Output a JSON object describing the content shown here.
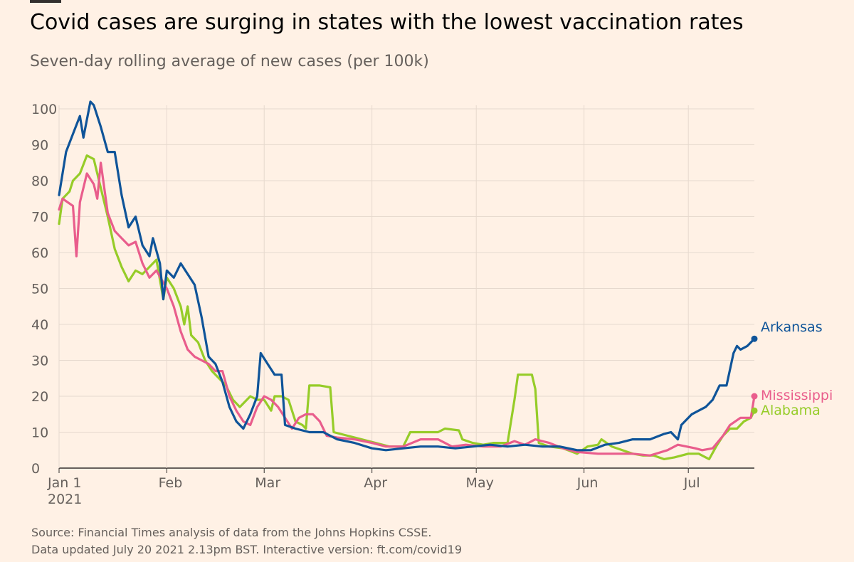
{
  "title": "Covid cases are surging in states with the lowest vaccination rates",
  "subtitle": "Seven-day rolling average of new cases (per 100k)",
  "footnotes": [
    "Source: Financial Times analysis of data from the Johns Hopkins CSSE.",
    "Data updated July 20 2021 2.13pm BST. Interactive version: ft.com/covid19"
  ],
  "chart_data": {
    "type": "line",
    "title": "Covid cases are surging in states with the lowest vaccination rates",
    "subtitle": "Seven-day rolling average of new cases (per 100k)",
    "x_unit": "date (2021)",
    "x_range": [
      "2021-01-01",
      "2021-07-20"
    ],
    "ylim": [
      0,
      100
    ],
    "yticks": [
      0,
      10,
      20,
      30,
      40,
      50,
      60,
      70,
      80,
      90,
      100
    ],
    "xticks": [
      {
        "date": "2021-01-01",
        "label": "Jan 1",
        "sublabel": "2021"
      },
      {
        "date": "2021-02-01",
        "label": "Feb"
      },
      {
        "date": "2021-03-01",
        "label": "Mar"
      },
      {
        "date": "2021-04-01",
        "label": "Apr"
      },
      {
        "date": "2021-05-01",
        "label": "May"
      },
      {
        "date": "2021-06-01",
        "label": "Jun"
      },
      {
        "date": "2021-07-01",
        "label": "Jul"
      }
    ],
    "grid": "vertical",
    "legend": "inline labels at line ends",
    "series": [
      {
        "name": "Arkansas",
        "color": "#0f5499",
        "points": [
          [
            "2021-01-01",
            76
          ],
          [
            "2021-01-03",
            88
          ],
          [
            "2021-01-05",
            93
          ],
          [
            "2021-01-07",
            98
          ],
          [
            "2021-01-08",
            92
          ],
          [
            "2021-01-10",
            102
          ],
          [
            "2021-01-11",
            101
          ],
          [
            "2021-01-13",
            95
          ],
          [
            "2021-01-15",
            88
          ],
          [
            "2021-01-17",
            88
          ],
          [
            "2021-01-19",
            76
          ],
          [
            "2021-01-21",
            67
          ],
          [
            "2021-01-23",
            70
          ],
          [
            "2021-01-25",
            62
          ],
          [
            "2021-01-27",
            59
          ],
          [
            "2021-01-28",
            64
          ],
          [
            "2021-01-30",
            57
          ],
          [
            "2021-01-31",
            47
          ],
          [
            "2021-02-01",
            55
          ],
          [
            "2021-02-03",
            53
          ],
          [
            "2021-02-05",
            57
          ],
          [
            "2021-02-07",
            54
          ],
          [
            "2021-02-09",
            51
          ],
          [
            "2021-02-11",
            42
          ],
          [
            "2021-02-13",
            31
          ],
          [
            "2021-02-15",
            29
          ],
          [
            "2021-02-17",
            24
          ],
          [
            "2021-02-19",
            17
          ],
          [
            "2021-02-21",
            13
          ],
          [
            "2021-02-23",
            11
          ],
          [
            "2021-02-25",
            15
          ],
          [
            "2021-02-27",
            20
          ],
          [
            "2021-02-28",
            32
          ],
          [
            "2021-03-02",
            29
          ],
          [
            "2021-03-04",
            26
          ],
          [
            "2021-03-06",
            26
          ],
          [
            "2021-03-07",
            12
          ],
          [
            "2021-03-10",
            11
          ],
          [
            "2021-03-14",
            10
          ],
          [
            "2021-03-18",
            10
          ],
          [
            "2021-03-22",
            8
          ],
          [
            "2021-03-27",
            7
          ],
          [
            "2021-04-01",
            5.5
          ],
          [
            "2021-04-05",
            5
          ],
          [
            "2021-04-10",
            5.5
          ],
          [
            "2021-04-15",
            6
          ],
          [
            "2021-04-20",
            6
          ],
          [
            "2021-04-25",
            5.5
          ],
          [
            "2021-04-30",
            6
          ],
          [
            "2021-05-05",
            6.5
          ],
          [
            "2021-05-10",
            6
          ],
          [
            "2021-05-15",
            6.5
          ],
          [
            "2021-05-20",
            6
          ],
          [
            "2021-05-25",
            6
          ],
          [
            "2021-05-30",
            5
          ],
          [
            "2021-06-03",
            5
          ],
          [
            "2021-06-07",
            6.5
          ],
          [
            "2021-06-11",
            7
          ],
          [
            "2021-06-15",
            8
          ],
          [
            "2021-06-20",
            8
          ],
          [
            "2021-06-24",
            9.5
          ],
          [
            "2021-06-26",
            10
          ],
          [
            "2021-06-28",
            8
          ],
          [
            "2021-06-29",
            12
          ],
          [
            "2021-07-02",
            15
          ],
          [
            "2021-07-04",
            16
          ],
          [
            "2021-07-06",
            17
          ],
          [
            "2021-07-08",
            19
          ],
          [
            "2021-07-10",
            23
          ],
          [
            "2021-07-12",
            23
          ],
          [
            "2021-07-14",
            32
          ],
          [
            "2021-07-15",
            34
          ],
          [
            "2021-07-16",
            33
          ],
          [
            "2021-07-18",
            34
          ],
          [
            "2021-07-20",
            36
          ]
        ]
      },
      {
        "name": "Mississippi",
        "color": "#e95d8c",
        "points": [
          [
            "2021-01-01",
            72
          ],
          [
            "2021-01-02",
            75
          ],
          [
            "2021-01-05",
            73
          ],
          [
            "2021-01-06",
            59
          ],
          [
            "2021-01-07",
            74
          ],
          [
            "2021-01-09",
            82
          ],
          [
            "2021-01-11",
            79
          ],
          [
            "2021-01-12",
            75
          ],
          [
            "2021-01-13",
            85
          ],
          [
            "2021-01-15",
            71
          ],
          [
            "2021-01-17",
            66
          ],
          [
            "2021-01-19",
            64
          ],
          [
            "2021-01-21",
            62
          ],
          [
            "2021-01-23",
            63
          ],
          [
            "2021-01-25",
            57
          ],
          [
            "2021-01-27",
            53
          ],
          [
            "2021-01-29",
            55
          ],
          [
            "2021-02-01",
            50
          ],
          [
            "2021-02-03",
            45
          ],
          [
            "2021-02-05",
            38
          ],
          [
            "2021-02-07",
            33
          ],
          [
            "2021-02-09",
            31
          ],
          [
            "2021-02-11",
            30
          ],
          [
            "2021-02-13",
            29
          ],
          [
            "2021-02-15",
            27
          ],
          [
            "2021-02-17",
            27
          ],
          [
            "2021-02-19",
            20
          ],
          [
            "2021-02-21",
            16
          ],
          [
            "2021-02-23",
            13
          ],
          [
            "2021-02-25",
            12
          ],
          [
            "2021-02-27",
            17
          ],
          [
            "2021-03-01",
            20
          ],
          [
            "2021-03-03",
            19
          ],
          [
            "2021-03-05",
            17
          ],
          [
            "2021-03-07",
            14
          ],
          [
            "2021-03-09",
            11
          ],
          [
            "2021-03-11",
            14
          ],
          [
            "2021-03-13",
            15
          ],
          [
            "2021-03-15",
            15
          ],
          [
            "2021-03-17",
            13
          ],
          [
            "2021-03-19",
            9
          ],
          [
            "2021-03-22",
            8.5
          ],
          [
            "2021-03-27",
            8
          ],
          [
            "2021-04-01",
            7
          ],
          [
            "2021-04-05",
            6
          ],
          [
            "2021-04-10",
            6
          ],
          [
            "2021-04-15",
            8
          ],
          [
            "2021-04-20",
            8
          ],
          [
            "2021-04-24",
            6
          ],
          [
            "2021-04-28",
            6.5
          ],
          [
            "2021-05-03",
            6
          ],
          [
            "2021-05-08",
            6
          ],
          [
            "2021-05-12",
            7.5
          ],
          [
            "2021-05-15",
            6.5
          ],
          [
            "2021-05-18",
            8
          ],
          [
            "2021-05-22",
            7
          ],
          [
            "2021-05-26",
            5.5
          ],
          [
            "2021-05-30",
            4.5
          ],
          [
            "2021-06-05",
            4
          ],
          [
            "2021-06-10",
            4
          ],
          [
            "2021-06-15",
            4
          ],
          [
            "2021-06-20",
            3.5
          ],
          [
            "2021-06-25",
            5
          ],
          [
            "2021-06-28",
            6.5
          ],
          [
            "2021-07-03",
            5.5
          ],
          [
            "2021-07-05",
            5
          ],
          [
            "2021-07-08",
            5.5
          ],
          [
            "2021-07-11",
            9
          ],
          [
            "2021-07-13",
            12
          ],
          [
            "2021-07-16",
            14
          ],
          [
            "2021-07-18",
            14
          ],
          [
            "2021-07-19",
            14
          ],
          [
            "2021-07-20",
            20
          ]
        ]
      },
      {
        "name": "Alabama",
        "color": "#96cc28",
        "points": [
          [
            "2021-01-01",
            68
          ],
          [
            "2021-01-02",
            75
          ],
          [
            "2021-01-04",
            77
          ],
          [
            "2021-01-05",
            80
          ],
          [
            "2021-01-07",
            82
          ],
          [
            "2021-01-09",
            87
          ],
          [
            "2021-01-11",
            86
          ],
          [
            "2021-01-13",
            78
          ],
          [
            "2021-01-15",
            70
          ],
          [
            "2021-01-17",
            61
          ],
          [
            "2021-01-19",
            56
          ],
          [
            "2021-01-21",
            52
          ],
          [
            "2021-01-23",
            55
          ],
          [
            "2021-01-25",
            54
          ],
          [
            "2021-01-27",
            56
          ],
          [
            "2021-01-29",
            58
          ],
          [
            "2021-01-31",
            47
          ],
          [
            "2021-02-01",
            53
          ],
          [
            "2021-02-03",
            50
          ],
          [
            "2021-02-05",
            45
          ],
          [
            "2021-02-06",
            40
          ],
          [
            "2021-02-07",
            45
          ],
          [
            "2021-02-08",
            37
          ],
          [
            "2021-02-10",
            35
          ],
          [
            "2021-02-12",
            30
          ],
          [
            "2021-02-14",
            27
          ],
          [
            "2021-02-16",
            25
          ],
          [
            "2021-02-18",
            23
          ],
          [
            "2021-02-20",
            19
          ],
          [
            "2021-02-22",
            17
          ],
          [
            "2021-02-25",
            20
          ],
          [
            "2021-02-27",
            19
          ],
          [
            "2021-03-01",
            19
          ],
          [
            "2021-03-03",
            16
          ],
          [
            "2021-03-04",
            20
          ],
          [
            "2021-03-06",
            20
          ],
          [
            "2021-03-08",
            19
          ],
          [
            "2021-03-10",
            13
          ],
          [
            "2021-03-12",
            12
          ],
          [
            "2021-03-13",
            11
          ],
          [
            "2021-03-14",
            23
          ],
          [
            "2021-03-17",
            23
          ],
          [
            "2021-03-20",
            22.5
          ],
          [
            "2021-03-21",
            10
          ],
          [
            "2021-03-25",
            9
          ],
          [
            "2021-03-29",
            8
          ],
          [
            "2021-04-02",
            7
          ],
          [
            "2021-04-06",
            6
          ],
          [
            "2021-04-10",
            6
          ],
          [
            "2021-04-12",
            10
          ],
          [
            "2021-04-15",
            10
          ],
          [
            "2021-04-20",
            10
          ],
          [
            "2021-04-22",
            11
          ],
          [
            "2021-04-26",
            10.5
          ],
          [
            "2021-04-27",
            8
          ],
          [
            "2021-04-30",
            7
          ],
          [
            "2021-05-03",
            6.5
          ],
          [
            "2021-05-06",
            7
          ],
          [
            "2021-05-10",
            7
          ],
          [
            "2021-05-12",
            19
          ],
          [
            "2021-05-13",
            26
          ],
          [
            "2021-05-17",
            26
          ],
          [
            "2021-05-18",
            22
          ],
          [
            "2021-05-19",
            7
          ],
          [
            "2021-05-22",
            6
          ],
          [
            "2021-05-26",
            5.5
          ],
          [
            "2021-05-30",
            4
          ],
          [
            "2021-06-02",
            6
          ],
          [
            "2021-06-05",
            6.5
          ],
          [
            "2021-06-06",
            8
          ],
          [
            "2021-06-09",
            6
          ],
          [
            "2021-06-12",
            5
          ],
          [
            "2021-06-15",
            4
          ],
          [
            "2021-06-18",
            3.5
          ],
          [
            "2021-06-21",
            3.5
          ],
          [
            "2021-06-24",
            2.5
          ],
          [
            "2021-06-27",
            3
          ],
          [
            "2021-07-01",
            4
          ],
          [
            "2021-07-04",
            4
          ],
          [
            "2021-07-06",
            3
          ],
          [
            "2021-07-07",
            2.5
          ],
          [
            "2021-07-09",
            6
          ],
          [
            "2021-07-11",
            9
          ],
          [
            "2021-07-13",
            11
          ],
          [
            "2021-07-15",
            11
          ],
          [
            "2021-07-17",
            13
          ],
          [
            "2021-07-19",
            14
          ],
          [
            "2021-07-20",
            16
          ]
        ]
      }
    ]
  }
}
